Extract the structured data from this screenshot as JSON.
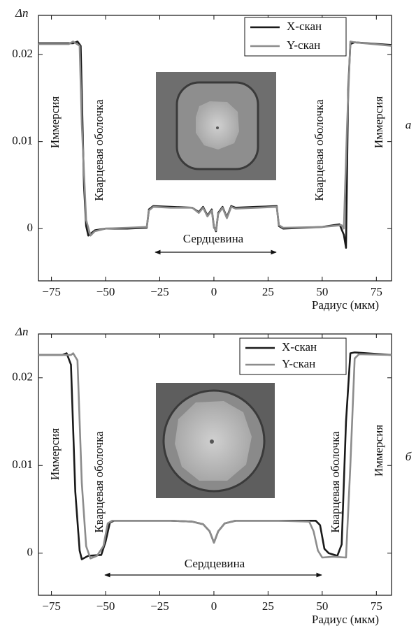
{
  "chart_data": [
    {
      "type": "line",
      "panel_label": "а",
      "y_label": "Δn",
      "x_label": "Радиус (мкм)",
      "annotations": [
        "Иммерсия",
        "Кварцевая оболочка",
        "Кварцевая оболочка",
        "Иммерсия",
        "Сердцевина"
      ],
      "xlim": [
        -81,
        82
      ],
      "ylim": [
        -0.006,
        0.0245
      ],
      "xticks": [
        {
          "value": -75,
          "label": "−75"
        },
        {
          "value": -50,
          "label": "−50"
        },
        {
          "value": -25,
          "label": "−25"
        },
        0,
        25,
        50,
        75
      ],
      "yticks": [
        0,
        0.01,
        0.02
      ],
      "legend": "upper right",
      "series": [
        {
          "name": "X-скан",
          "color": "#1a1a1a",
          "x": [
            -81,
            -65,
            -63,
            -61.5,
            -60,
            -59,
            -58,
            -55,
            -50,
            -40,
            -31,
            -30,
            -28,
            -20,
            -10,
            -7,
            -5,
            -3,
            -1,
            0,
            1,
            2,
            4,
            6,
            8,
            10,
            20,
            29,
            30,
            32,
            50,
            58,
            60,
            61,
            62,
            63,
            65,
            82
          ],
          "values": [
            0.0213,
            0.0213,
            0.0215,
            0.021,
            0.005,
            0.0003,
            -0.0008,
            -0.0002,
            0,
            0,
            0.0001,
            0.0022,
            0.0026,
            0.0025,
            0.0024,
            0.0019,
            0.0025,
            0.0015,
            0.0022,
            0.0002,
            -0.0003,
            0.0018,
            0.0025,
            0.0013,
            0.0026,
            0.0024,
            0.0025,
            0.0026,
            0.0003,
            0,
            0.0002,
            0.0005,
            -0.0007,
            -0.0022,
            0.016,
            0.0212,
            0.0214,
            0.0211
          ]
        },
        {
          "name": "Y-скан",
          "color": "#8c8c8c",
          "x": [
            -81,
            -67,
            -65,
            -62,
            -61,
            -59,
            -57,
            -55,
            -50,
            -40,
            -31,
            -30,
            -28,
            -20,
            -10,
            -7,
            -5,
            -3,
            -1,
            0,
            1,
            2,
            4,
            6,
            8,
            10,
            20,
            29,
            30,
            32,
            50,
            59,
            60,
            61.5,
            63,
            65,
            82
          ],
          "values": [
            0.0212,
            0.0212,
            0.0215,
            0.021,
            0.012,
            0.001,
            -0.0008,
            -0.0003,
            0,
            0.0001,
            0.0002,
            0.0021,
            0.0025,
            0.0024,
            0.0024,
            0.0018,
            0.0024,
            0.0014,
            0.0021,
            0.0001,
            -0.0002,
            0.0017,
            0.0024,
            0.0012,
            0.0025,
            0.0023,
            0.0024,
            0.0025,
            0.0004,
            0.0001,
            0.0002,
            0.0004,
            0,
            0.012,
            0.0215,
            0.0214,
            0.021
          ]
        }
      ]
    },
    {
      "type": "line",
      "panel_label": "б",
      "y_label": "Δn",
      "x_label": "Радиус (мкм)",
      "annotations": [
        "Иммерсия",
        "Кварцевая оболочка",
        "Кварцевая оболочка",
        "Иммерсия",
        "Сердцевина"
      ],
      "xlim": [
        -81,
        82
      ],
      "ylim": [
        -0.0048,
        0.025
      ],
      "xticks": [
        {
          "value": -75,
          "label": "−75"
        },
        {
          "value": -50,
          "label": "−50"
        },
        {
          "value": -25,
          "label": "−25"
        },
        0,
        25,
        50,
        75
      ],
      "yticks": [
        0,
        0.01,
        0.02
      ],
      "legend": "upper right",
      "series": [
        {
          "name": "X-скан",
          "color": "#1a1a1a",
          "x": [
            -81,
            -70,
            -68,
            -66,
            -64,
            -62,
            -61,
            -58,
            -52,
            -50,
            -48,
            -46,
            -20,
            -10,
            -5,
            -2,
            0,
            2,
            5,
            10,
            30,
            47,
            49,
            51,
            53,
            57,
            59,
            61,
            63,
            65,
            82
          ],
          "values": [
            0.0226,
            0.0226,
            0.0228,
            0.0215,
            0.007,
            0.0003,
            -0.0007,
            -0.0003,
            -0.0002,
            0.0013,
            0.0035,
            0.0037,
            0.0037,
            0.0036,
            0.0033,
            0.0025,
            0.0012,
            0.0025,
            0.0034,
            0.0037,
            0.0037,
            0.0037,
            0.0032,
            0.0005,
            0,
            -0.0003,
            0.001,
            0.015,
            0.0228,
            0.0229,
            0.0226
          ]
        },
        {
          "name": "Y-скан",
          "color": "#8c8c8c",
          "x": [
            -81,
            -66,
            -65,
            -63,
            -61,
            -59,
            -57,
            -54,
            -51,
            -49,
            -47,
            -20,
            -10,
            -5,
            -2,
            0,
            2,
            5,
            10,
            30,
            44,
            46,
            48,
            50,
            55,
            61,
            63,
            65,
            67,
            82
          ],
          "values": [
            0.0226,
            0.0226,
            0.0228,
            0.022,
            0.008,
            0.0008,
            -0.0006,
            -0.0003,
            0.0008,
            0.0034,
            0.0037,
            0.0037,
            0.0036,
            0.0033,
            0.0025,
            0.0012,
            0.0025,
            0.0034,
            0.0037,
            0.0037,
            0.0036,
            0.0025,
            0.0003,
            -0.0005,
            -0.0004,
            -0.0005,
            0.01,
            0.0222,
            0.0227,
            0.0226
          ]
        }
      ]
    }
  ]
}
